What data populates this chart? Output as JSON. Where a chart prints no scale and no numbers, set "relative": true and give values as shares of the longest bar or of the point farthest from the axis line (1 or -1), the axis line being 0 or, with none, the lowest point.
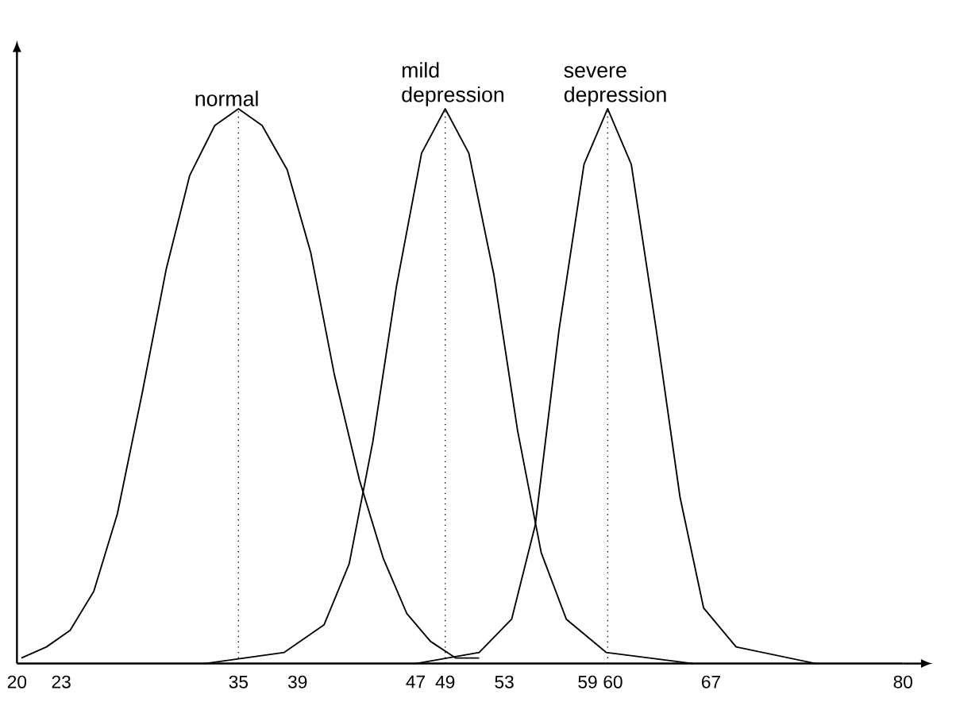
{
  "chart_data": {
    "type": "line",
    "relative": true,
    "tick_labels": "x",
    "legend": false,
    "xlim": [
      20,
      80
    ],
    "xticks": [
      20,
      23,
      35,
      39,
      47,
      49,
      53,
      59,
      60,
      67,
      80
    ],
    "series": [
      {
        "name": "normal",
        "color": "#000000",
        "x": [
          20.3,
          22,
          23.6,
          25.2,
          26.8,
          28.5,
          30.1,
          31.7,
          33.4,
          35,
          36.6,
          38.3,
          39.9,
          41.5,
          43.2,
          44.8,
          46.4,
          48,
          49.7,
          51.3
        ],
        "values": [
          0.01,
          0.03,
          0.06,
          0.13,
          0.27,
          0.49,
          0.71,
          0.88,
          0.97,
          1,
          0.97,
          0.89,
          0.74,
          0.52,
          0.33,
          0.19,
          0.09,
          0.04,
          0.01,
          0.01
        ]
      },
      {
        "name": "mild depression",
        "color": "#000000",
        "x": [
          32.7,
          38.1,
          40.8,
          42.5,
          44.1,
          45.7,
          47.4,
          49,
          50.6,
          52.3,
          53.9,
          55.5,
          57.2,
          59.9,
          65.8
        ],
        "values": [
          0,
          0.02,
          0.07,
          0.18,
          0.4,
          0.68,
          0.92,
          1,
          0.92,
          0.7,
          0.42,
          0.2,
          0.08,
          0.02,
          0
        ]
      },
      {
        "name": "severe depression",
        "color": "#000000",
        "x": [
          47.0,
          51.3,
          53.5,
          55.1,
          56.7,
          58.4,
          60,
          61.6,
          63.3,
          64.9,
          66.5,
          68.7,
          74.1
        ],
        "values": [
          0,
          0.02,
          0.08,
          0.25,
          0.6,
          0.9,
          1,
          0.9,
          0.6,
          0.3,
          0.1,
          0.03,
          0
        ]
      }
    ],
    "ref_lines": [
      {
        "axis": "x",
        "value": 35,
        "line_style": "dotted"
      },
      {
        "axis": "x",
        "value": 49,
        "line_style": "dotted"
      },
      {
        "axis": "x",
        "value": 60,
        "line_style": "dotted"
      }
    ]
  }
}
